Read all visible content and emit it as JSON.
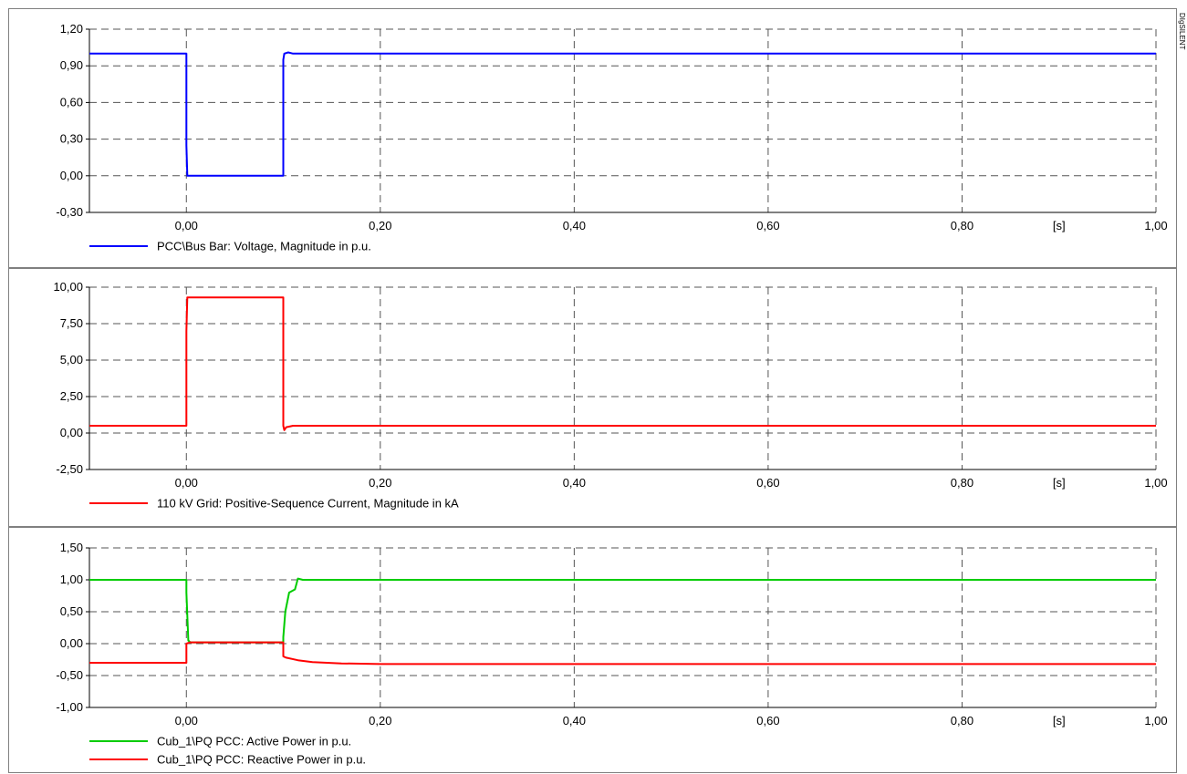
{
  "side_label": "DIgSILENT",
  "chart_data": [
    {
      "type": "line",
      "xlim": [
        -0.1,
        1.0
      ],
      "ylim": [
        -0.3,
        1.2
      ],
      "x_ticks": [
        0.0,
        0.2,
        0.4,
        0.6,
        0.8,
        1.0
      ],
      "x_tick_labels": [
        "0,00",
        "0,20",
        "0,40",
        "0,60",
        "0,80",
        "1,00"
      ],
      "x_unit_label": "[s]",
      "y_ticks": [
        -0.3,
        0.0,
        0.3,
        0.6,
        0.9,
        1.2
      ],
      "y_tick_labels": [
        "-0,30",
        "0,00",
        "0,30",
        "0,60",
        "0,90",
        "1,20"
      ],
      "grid": true,
      "legend_position": "bottom-left",
      "series": [
        {
          "name": "PCC\\Bus Bar: Voltage, Magnitude in p.u.",
          "color": "#0000ff",
          "x": [
            -0.1,
            0.0,
            0.0,
            0.001,
            0.1,
            0.1,
            0.101,
            0.105,
            0.11,
            1.0
          ],
          "y": [
            1.0,
            1.0,
            0.25,
            0.0,
            0.0,
            0.95,
            1.0,
            1.01,
            1.0,
            1.0
          ]
        }
      ]
    },
    {
      "type": "line",
      "xlim": [
        -0.1,
        1.0
      ],
      "ylim": [
        -2.5,
        10.0
      ],
      "x_ticks": [
        0.0,
        0.2,
        0.4,
        0.6,
        0.8,
        1.0
      ],
      "x_tick_labels": [
        "0,00",
        "0,20",
        "0,40",
        "0,60",
        "0,80",
        "1,00"
      ],
      "x_unit_label": "[s]",
      "y_ticks": [
        -2.5,
        0.0,
        2.5,
        5.0,
        7.5,
        10.0
      ],
      "y_tick_labels": [
        "-2,50",
        "0,00",
        "2,50",
        "5,00",
        "7,50",
        "10,00"
      ],
      "grid": true,
      "legend_position": "bottom-left",
      "series": [
        {
          "name": "110 kV Grid: Positive-Sequence Current, Magnitude in kA",
          "color": "#ff0000",
          "x": [
            -0.1,
            0.0,
            0.0,
            0.001,
            0.1,
            0.1,
            0.101,
            0.103,
            0.11,
            1.0
          ],
          "y": [
            0.5,
            0.5,
            7.0,
            9.3,
            9.3,
            0.5,
            0.2,
            0.4,
            0.5,
            0.5
          ]
        }
      ]
    },
    {
      "type": "line",
      "xlim": [
        -0.1,
        1.0
      ],
      "ylim": [
        -1.0,
        1.5
      ],
      "x_ticks": [
        0.0,
        0.2,
        0.4,
        0.6,
        0.8,
        1.0
      ],
      "x_tick_labels": [
        "0,00",
        "0,20",
        "0,40",
        "0,60",
        "0,80",
        "1,00"
      ],
      "x_unit_label": "[s]",
      "y_ticks": [
        -1.0,
        -0.5,
        0.0,
        0.5,
        1.0,
        1.5
      ],
      "y_tick_labels": [
        "-1,00",
        "-0,50",
        "0,00",
        "0,50",
        "1,00",
        "1,50"
      ],
      "grid": true,
      "legend_position": "bottom-left",
      "series": [
        {
          "name": "Cub_1\\PQ PCC: Active Power in p.u.",
          "color": "#00cc00",
          "x": [
            -0.1,
            0.0,
            0.0,
            0.002,
            0.004,
            0.1,
            0.1,
            0.102,
            0.106,
            0.112,
            0.115,
            0.12,
            1.0
          ],
          "y": [
            1.0,
            1.0,
            0.8,
            0.05,
            0.02,
            0.02,
            0.1,
            0.5,
            0.8,
            0.85,
            1.02,
            1.0,
            1.0
          ]
        },
        {
          "name": "Cub_1\\PQ PCC: Reactive Power in p.u.",
          "color": "#ff0000",
          "x": [
            -0.1,
            0.0,
            0.0,
            0.004,
            0.1,
            0.1,
            0.103,
            0.115,
            0.13,
            0.16,
            0.2,
            1.0
          ],
          "y": [
            -0.3,
            -0.3,
            0.0,
            0.02,
            0.02,
            -0.2,
            -0.22,
            -0.26,
            -0.29,
            -0.31,
            -0.32,
            -0.32
          ]
        }
      ]
    }
  ]
}
